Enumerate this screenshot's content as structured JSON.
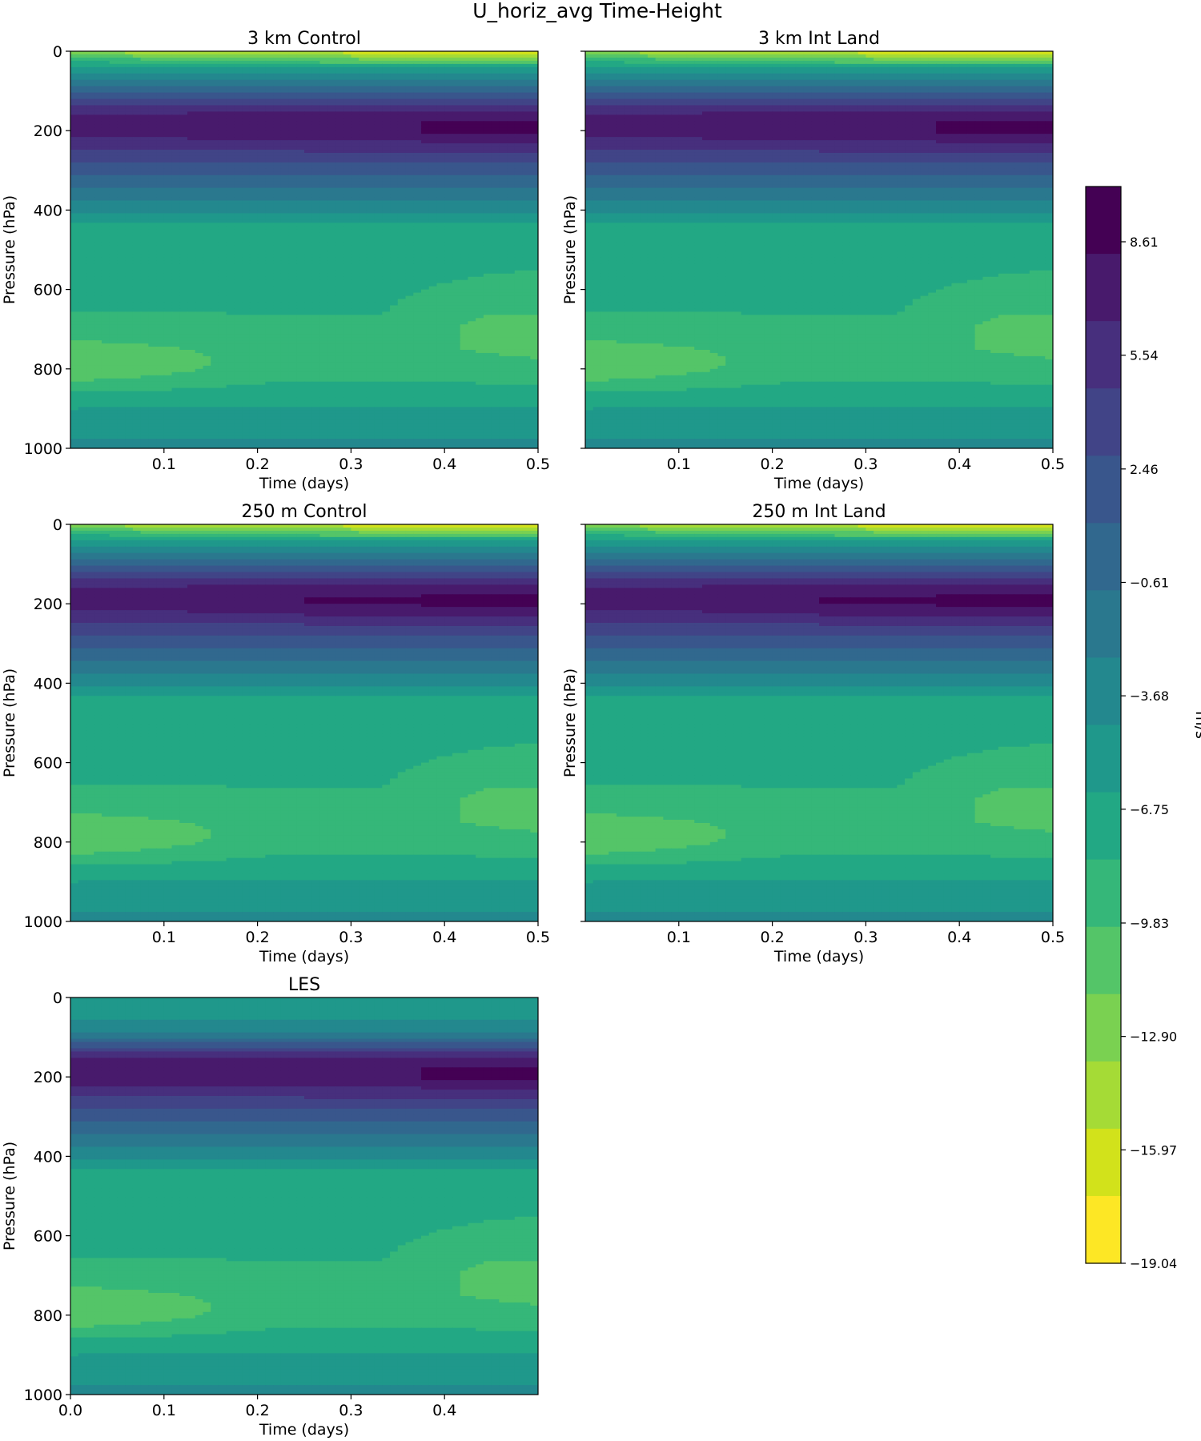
{
  "figure_title": "U_horiz_avg Time-Height",
  "colorbar": {
    "label": "m/s",
    "tick_labels": [
      "8.61",
      "5.54",
      "2.46",
      "−0.61",
      "−3.68",
      "−6.75",
      "−9.83",
      "−12.90",
      "−15.97",
      "−19.04"
    ],
    "tick_values": [
      8.61,
      5.54,
      2.46,
      -0.61,
      -3.68,
      -6.75,
      -9.83,
      -12.9,
      -15.97,
      -19.04
    ],
    "colors": [
      "#440154",
      "#481a6c",
      "#472f7d",
      "#414487",
      "#39568c",
      "#31688e",
      "#2a788e",
      "#23888e",
      "#1f988b",
      "#22a884",
      "#35b779",
      "#54c568",
      "#7ad151",
      "#a5db36",
      "#d2e21b",
      "#fde725"
    ]
  },
  "chart_data": [
    {
      "type": "heatmap",
      "title": "3 km Control",
      "xlabel": "Time (days)",
      "ylabel": "Pressure (hPa)",
      "xlim": [
        0.0,
        0.5
      ],
      "ylim": [
        1000,
        0
      ],
      "xticks": [
        "0.1",
        "0.2",
        "0.3",
        "0.4",
        "0.5"
      ],
      "yticks": [
        "0",
        "200",
        "400",
        "600",
        "800",
        "1000"
      ],
      "profile_pressure_hPa": [
        0,
        25,
        50,
        75,
        100,
        125,
        150,
        175,
        200,
        225,
        250,
        275,
        300,
        325,
        350,
        375,
        400,
        425,
        450,
        500,
        550,
        600,
        650,
        700,
        750,
        800,
        850,
        875,
        900,
        925,
        950,
        975,
        1000
      ],
      "profile_u_ms": [
        -14,
        -8,
        -5,
        -2,
        1,
        4,
        6.5,
        7.5,
        7.5,
        6.5,
        5,
        3.5,
        2,
        0.5,
        -1,
        -2.5,
        -4,
        -5.5,
        -7,
        -7.5,
        -7.6,
        -7.6,
        -7.8,
        -8.5,
        -9,
        -8.8,
        -7.5,
        -6.6,
        -6,
        -5.4,
        -4.8,
        -4.2,
        -3.5
      ],
      "jet_core_u_ms": [
        7.5,
        8.1,
        8.4,
        9.0
      ],
      "midlevel_max_u_ms": -10.0
    },
    {
      "type": "heatmap",
      "title": "3 km Int Land",
      "xlabel": "Time (days)",
      "ylabel": "Pressure (hPa)",
      "xlim": [
        0.0,
        0.5
      ],
      "ylim": [
        1000,
        0
      ],
      "xticks": [
        "0.1",
        "0.2",
        "0.3",
        "0.4",
        "0.5"
      ],
      "yticks": [
        "0",
        "200",
        "400",
        "600",
        "800",
        "1000"
      ],
      "profile_pressure_hPa": [
        0,
        25,
        50,
        75,
        100,
        125,
        150,
        175,
        200,
        225,
        250,
        275,
        300,
        325,
        350,
        375,
        400,
        425,
        450,
        500,
        550,
        600,
        650,
        700,
        750,
        800,
        850,
        875,
        900,
        925,
        950,
        975,
        1000
      ],
      "profile_u_ms": [
        -14,
        -8,
        -5,
        -2,
        1,
        4,
        6.5,
        7.5,
        7.5,
        6.5,
        5,
        3.5,
        2,
        0.5,
        -1,
        -2.5,
        -4,
        -5.5,
        -7,
        -7.5,
        -7.6,
        -7.6,
        -7.8,
        -8.5,
        -9,
        -8.8,
        -7.5,
        -6.6,
        -6,
        -5.4,
        -4.8,
        -4.2,
        -3.5
      ],
      "jet_core_u_ms": [
        7.5,
        8.1,
        8.4,
        9.0
      ],
      "midlevel_max_u_ms": -10.0
    },
    {
      "type": "heatmap",
      "title": "250 m Control",
      "xlabel": "Time (days)",
      "ylabel": "Pressure (hPa)",
      "xlim": [
        0.0,
        0.5
      ],
      "ylim": [
        1000,
        0
      ],
      "xticks": [
        "0.1",
        "0.2",
        "0.3",
        "0.4",
        "0.5"
      ],
      "yticks": [
        "0",
        "200",
        "400",
        "600",
        "800",
        "1000"
      ],
      "profile_pressure_hPa": [
        0,
        25,
        50,
        75,
        100,
        125,
        150,
        175,
        200,
        225,
        250,
        275,
        300,
        325,
        350,
        375,
        400,
        425,
        450,
        500,
        550,
        600,
        650,
        700,
        750,
        800,
        850,
        875,
        900,
        925,
        950,
        975,
        1000
      ],
      "profile_u_ms": [
        -14,
        -8,
        -5,
        -2,
        1,
        4,
        6.5,
        7.5,
        7.5,
        6.5,
        5,
        3.5,
        2,
        0.5,
        -1,
        -2.5,
        -4,
        -5.5,
        -7,
        -7.5,
        -7.6,
        -7.6,
        -7.8,
        -8.5,
        -9,
        -8.8,
        -7.5,
        -6.6,
        -6,
        -5.4,
        -4.8,
        -4.2,
        -2.5
      ],
      "jet_core_u_ms": [
        7.5,
        8.1,
        8.8,
        9.2
      ],
      "midlevel_max_u_ms": -10.0
    },
    {
      "type": "heatmap",
      "title": "250 m Int Land",
      "xlabel": "Time (days)",
      "ylabel": "Pressure (hPa)",
      "xlim": [
        0.0,
        0.5
      ],
      "ylim": [
        1000,
        0
      ],
      "xticks": [
        "0.1",
        "0.2",
        "0.3",
        "0.4",
        "0.5"
      ],
      "yticks": [
        "0",
        "200",
        "400",
        "600",
        "800",
        "1000"
      ],
      "profile_pressure_hPa": [
        0,
        25,
        50,
        75,
        100,
        125,
        150,
        175,
        200,
        225,
        250,
        275,
        300,
        325,
        350,
        375,
        400,
        425,
        450,
        500,
        550,
        600,
        650,
        700,
        750,
        800,
        850,
        875,
        900,
        925,
        950,
        975,
        1000
      ],
      "profile_u_ms": [
        -14,
        -8,
        -5,
        -2,
        1,
        4,
        6.5,
        7.5,
        7.5,
        6.5,
        5,
        3.5,
        2,
        0.5,
        -1,
        -2.5,
        -4,
        -5.5,
        -7,
        -7.5,
        -7.6,
        -7.6,
        -7.8,
        -8.5,
        -9,
        -8.8,
        -7.5,
        -6.6,
        -6,
        -5.4,
        -4.8,
        -4.2,
        -2.5
      ],
      "jet_core_u_ms": [
        7.5,
        8.1,
        8.8,
        9.2
      ],
      "midlevel_max_u_ms": -10.0
    },
    {
      "type": "heatmap",
      "title": "LES",
      "xlabel": "Time (days)",
      "ylabel": "Pressure (hPa)",
      "xlim": [
        0.0,
        0.5
      ],
      "ylim": [
        1000,
        0
      ],
      "xticks": [
        "0.0",
        "0.1",
        "0.2",
        "0.3",
        "0.4"
      ],
      "yticks": [
        "0",
        "200",
        "400",
        "600",
        "800",
        "1000"
      ],
      "profile_pressure_hPa": [
        0,
        25,
        50,
        75,
        100,
        125,
        150,
        175,
        200,
        225,
        250,
        275,
        300,
        325,
        350,
        375,
        400,
        425,
        450,
        500,
        550,
        600,
        650,
        700,
        750,
        800,
        850,
        875,
        900,
        925,
        950,
        975,
        1000
      ],
      "profile_u_ms": [
        -4.5,
        -4.5,
        -4.5,
        -3.5,
        -1,
        3,
        6.5,
        7.5,
        7.5,
        6.5,
        5,
        3.5,
        2,
        0.5,
        -1,
        -2.5,
        -4,
        -5.5,
        -7,
        -7.5,
        -7.6,
        -7.6,
        -7.8,
        -8.5,
        -9,
        -8.8,
        -7.5,
        -6.6,
        -6,
        -5.4,
        -4.8,
        -4.2,
        -3.5
      ],
      "jet_core_u_ms": [
        8.1,
        8.1,
        8.4,
        9.2
      ],
      "midlevel_max_u_ms": -10.0
    }
  ]
}
